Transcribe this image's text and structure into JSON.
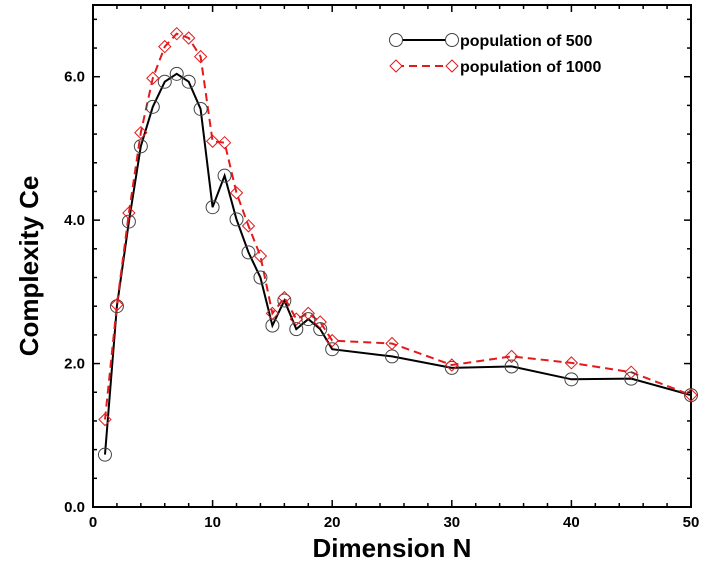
{
  "chart_data": {
    "type": "line",
    "title": "",
    "xlabel": "Dimension N",
    "ylabel": "Complexity Ce",
    "xlim": [
      0,
      50
    ],
    "ylim": [
      0,
      7.0
    ],
    "xticks": [
      0,
      10,
      20,
      30,
      40,
      50
    ],
    "xtick_labels": [
      "0",
      "10",
      "20",
      "30",
      "40",
      "50"
    ],
    "yticks": [
      0,
      2,
      4,
      6
    ],
    "ytick_labels": [
      "0.0",
      "2.0",
      "4.0",
      "6.0"
    ],
    "grid": false,
    "legend_position": "top-right",
    "series": [
      {
        "name": "population of 500",
        "color": "#000000",
        "line_style": "solid",
        "marker": "circle",
        "x": [
          1,
          2,
          3,
          4,
          5,
          6,
          7,
          8,
          9,
          10,
          11,
          12,
          13,
          14,
          15,
          16,
          17,
          18,
          19,
          20,
          25,
          30,
          35,
          40,
          45,
          50
        ],
        "y": [
          0.73,
          2.8,
          3.98,
          5.03,
          5.58,
          5.93,
          6.04,
          5.93,
          5.55,
          4.18,
          4.62,
          4.01,
          3.55,
          3.2,
          2.53,
          2.88,
          2.48,
          2.62,
          2.48,
          2.2,
          2.1,
          1.94,
          1.96,
          1.78,
          1.79,
          1.56
        ]
      },
      {
        "name": "population of 1000",
        "color": "#e31a1c",
        "line_style": "dashed",
        "marker": "diamond",
        "x": [
          1,
          2,
          3,
          4,
          5,
          6,
          7,
          8,
          9,
          10,
          11,
          12,
          13,
          14,
          15,
          16,
          17,
          18,
          19,
          20,
          25,
          30,
          35,
          40,
          45,
          50
        ],
        "y": [
          1.22,
          2.82,
          4.1,
          5.22,
          5.98,
          6.42,
          6.6,
          6.54,
          6.28,
          5.1,
          5.08,
          4.38,
          3.92,
          3.5,
          2.7,
          2.92,
          2.62,
          2.7,
          2.58,
          2.32,
          2.28,
          1.98,
          2.1,
          2.01,
          1.88,
          1.56
        ]
      }
    ]
  }
}
